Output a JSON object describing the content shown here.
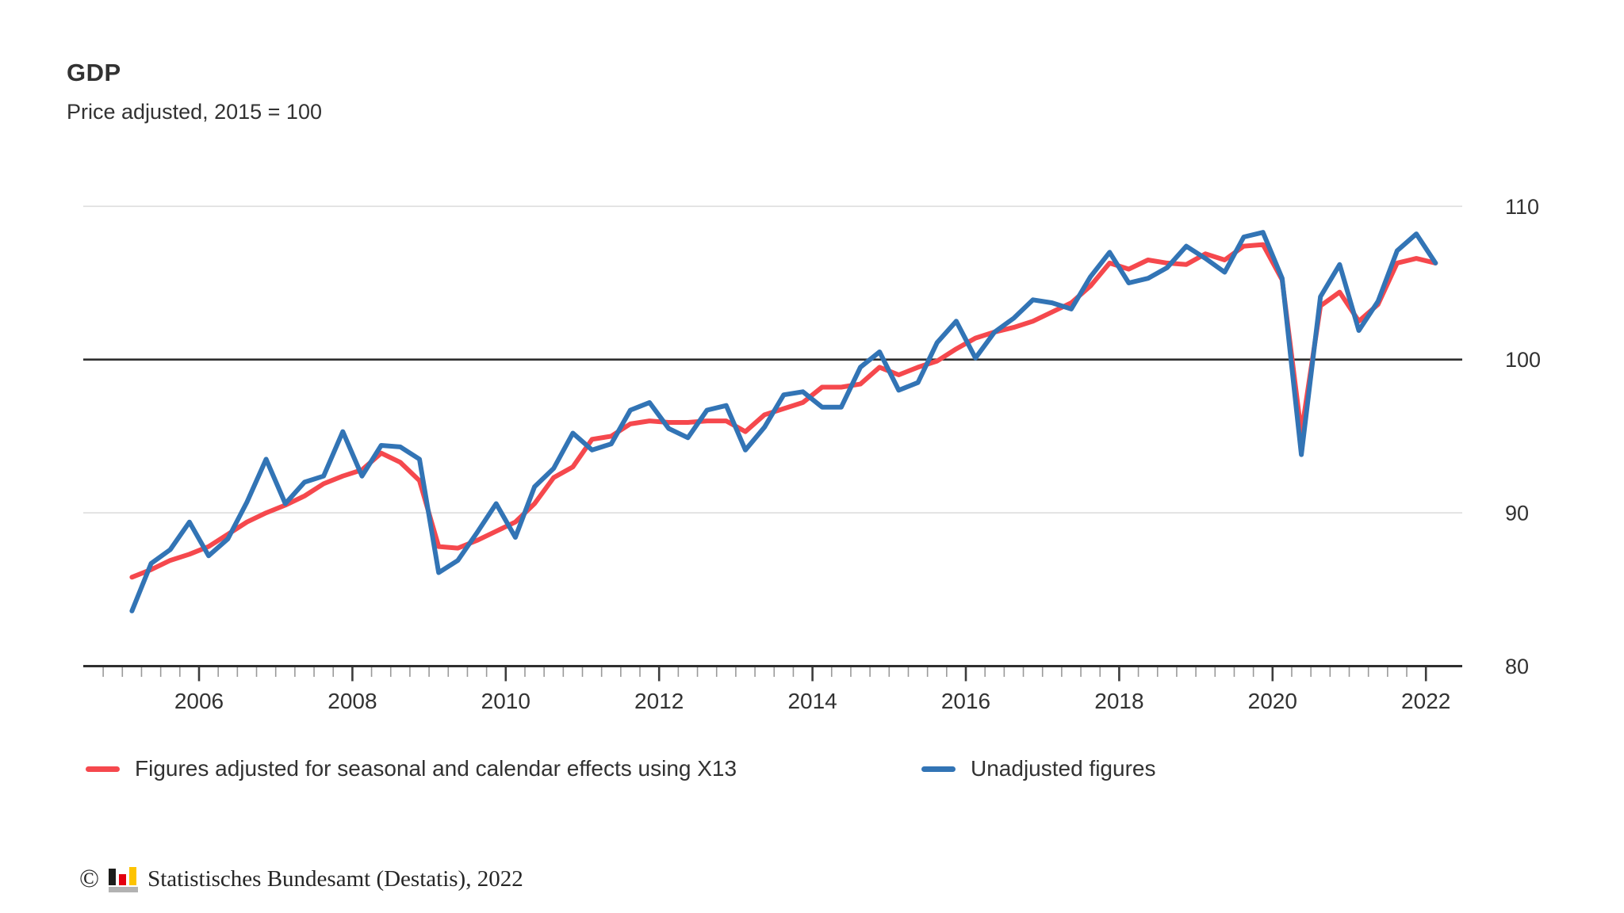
{
  "header": {
    "title": "GDP",
    "subtitle": "Price adjusted, 2015 = 100"
  },
  "chart_data": {
    "type": "line",
    "title": "GDP",
    "subtitle": "Price adjusted, 2015 = 100",
    "x_frequency": "quarterly",
    "x_range": [
      "2005 Q1",
      "2022 Q1"
    ],
    "x_tick_labels": [
      "2006",
      "2008",
      "2010",
      "2012",
      "2014",
      "2016",
      "2018",
      "2020",
      "2022"
    ],
    "y_ticks": [
      110,
      100,
      90,
      80
    ],
    "ylim": [
      80,
      111.6
    ],
    "baseline_value": 100,
    "grid": "horizontal",
    "legend_position": "bottom",
    "series": [
      {
        "name": "Figures adjusted for seasonal and calendar effects using X13",
        "color": "#f5484d",
        "values": [
          85.8,
          86.3,
          86.9,
          87.3,
          87.8,
          88.6,
          89.4,
          90.0,
          90.5,
          91.1,
          91.9,
          92.4,
          92.8,
          93.9,
          93.3,
          92.1,
          87.8,
          87.7,
          88.2,
          88.8,
          89.4,
          90.6,
          92.3,
          93.0,
          94.8,
          95.0,
          95.8,
          96.0,
          95.9,
          95.9,
          96.0,
          96.0,
          95.3,
          96.4,
          96.8,
          97.2,
          98.2,
          98.2,
          98.4,
          99.5,
          99.0,
          99.5,
          99.9,
          100.7,
          101.4,
          101.8,
          102.1,
          102.5,
          103.1,
          103.7,
          104.8,
          106.3,
          105.9,
          106.5,
          106.3,
          106.2,
          106.9,
          106.5,
          107.4,
          107.5,
          105.2,
          95.2,
          103.5,
          104.4,
          102.5,
          103.6,
          106.3,
          106.6,
          106.3
        ]
      },
      {
        "name": "Unadjusted figures",
        "color": "#3274b5",
        "values": [
          83.6,
          86.7,
          87.6,
          89.4,
          87.2,
          88.3,
          90.7,
          93.5,
          90.6,
          92.0,
          92.4,
          95.3,
          92.4,
          94.4,
          94.3,
          93.5,
          86.1,
          86.9,
          88.7,
          90.6,
          88.4,
          91.7,
          92.9,
          95.2,
          94.1,
          94.5,
          96.7,
          97.2,
          95.5,
          94.9,
          96.7,
          97.0,
          94.1,
          95.6,
          97.7,
          97.9,
          96.9,
          96.9,
          99.5,
          100.5,
          98.0,
          98.5,
          101.1,
          102.5,
          100.1,
          101.8,
          102.7,
          103.9,
          103.7,
          103.3,
          105.4,
          107.0,
          105.0,
          105.3,
          106.0,
          107.4,
          106.6,
          105.7,
          108.0,
          108.3,
          105.3,
          93.8,
          104.1,
          106.2,
          101.9,
          103.8,
          107.1,
          108.2,
          106.3
        ]
      }
    ]
  },
  "footer": {
    "copyright_symbol": "©",
    "source_text": "Statistisches Bundesamt (Destatis), 2022",
    "logo": {
      "bar_colors": [
        "#1d1d1b",
        "#e3000f",
        "#fdc300"
      ],
      "base_color": "#b2b2b2"
    }
  }
}
